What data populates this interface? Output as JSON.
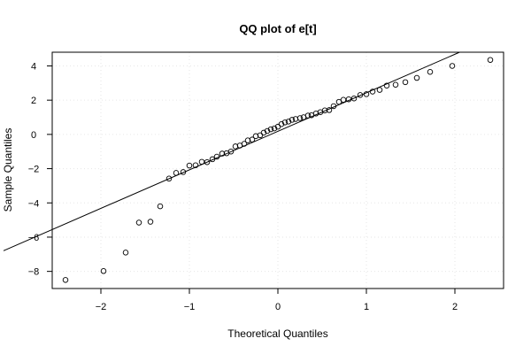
{
  "chart_data": {
    "type": "scatter",
    "title": "QQ plot of e[t]",
    "xlabel": "Theoretical Quantiles",
    "ylabel": "Sample Quantiles",
    "xlim": [
      -2.55,
      2.55
    ],
    "ylim": [
      -9.0,
      4.8
    ],
    "x_ticks": [
      -2,
      -1,
      0,
      1,
      2
    ],
    "x_tick_labels": [
      "−2",
      "−1",
      "0",
      "1",
      "2"
    ],
    "y_ticks": [
      -8,
      -6,
      -4,
      -2,
      0,
      2,
      4
    ],
    "y_tick_labels": [
      "−8",
      "−6",
      "−4",
      "−2",
      "0",
      "2",
      "4"
    ],
    "grid": true,
    "reference_line": {
      "intercept": 0.18,
      "slope": 2.25
    },
    "points": [
      {
        "x": -2.4,
        "y": -8.5
      },
      {
        "x": -1.97,
        "y": -7.98
      },
      {
        "x": -1.72,
        "y": -6.9
      },
      {
        "x": -1.57,
        "y": -5.15
      },
      {
        "x": -1.44,
        "y": -5.1
      },
      {
        "x": -1.33,
        "y": -4.2
      },
      {
        "x": -1.23,
        "y": -2.58
      },
      {
        "x": -1.15,
        "y": -2.25
      },
      {
        "x": -1.07,
        "y": -2.2
      },
      {
        "x": -1.0,
        "y": -1.82
      },
      {
        "x": -0.93,
        "y": -1.8
      },
      {
        "x": -0.86,
        "y": -1.6
      },
      {
        "x": -0.8,
        "y": -1.62
      },
      {
        "x": -0.74,
        "y": -1.45
      },
      {
        "x": -0.69,
        "y": -1.3
      },
      {
        "x": -0.63,
        "y": -1.12
      },
      {
        "x": -0.58,
        "y": -1.1
      },
      {
        "x": -0.53,
        "y": -1.0
      },
      {
        "x": -0.48,
        "y": -0.7
      },
      {
        "x": -0.43,
        "y": -0.65
      },
      {
        "x": -0.38,
        "y": -0.55
      },
      {
        "x": -0.34,
        "y": -0.35
      },
      {
        "x": -0.29,
        "y": -0.3
      },
      {
        "x": -0.25,
        "y": -0.1
      },
      {
        "x": -0.2,
        "y": -0.05
      },
      {
        "x": -0.16,
        "y": 0.1
      },
      {
        "x": -0.12,
        "y": 0.2
      },
      {
        "x": -0.08,
        "y": 0.3
      },
      {
        "x": -0.04,
        "y": 0.35
      },
      {
        "x": 0.0,
        "y": 0.45
      },
      {
        "x": 0.04,
        "y": 0.6
      },
      {
        "x": 0.08,
        "y": 0.7
      },
      {
        "x": 0.12,
        "y": 0.75
      },
      {
        "x": 0.16,
        "y": 0.85
      },
      {
        "x": 0.2,
        "y": 0.9
      },
      {
        "x": 0.25,
        "y": 0.95
      },
      {
        "x": 0.29,
        "y": 1.0
      },
      {
        "x": 0.34,
        "y": 1.1
      },
      {
        "x": 0.38,
        "y": 1.12
      },
      {
        "x": 0.43,
        "y": 1.22
      },
      {
        "x": 0.48,
        "y": 1.3
      },
      {
        "x": 0.53,
        "y": 1.4
      },
      {
        "x": 0.58,
        "y": 1.42
      },
      {
        "x": 0.63,
        "y": 1.65
      },
      {
        "x": 0.69,
        "y": 1.9
      },
      {
        "x": 0.74,
        "y": 2.02
      },
      {
        "x": 0.8,
        "y": 2.05
      },
      {
        "x": 0.86,
        "y": 2.1
      },
      {
        "x": 0.93,
        "y": 2.3
      },
      {
        "x": 1.0,
        "y": 2.35
      },
      {
        "x": 1.07,
        "y": 2.5
      },
      {
        "x": 1.15,
        "y": 2.6
      },
      {
        "x": 1.23,
        "y": 2.85
      },
      {
        "x": 1.33,
        "y": 2.9
      },
      {
        "x": 1.44,
        "y": 3.05
      },
      {
        "x": 1.57,
        "y": 3.3
      },
      {
        "x": 1.72,
        "y": 3.65
      },
      {
        "x": 1.97,
        "y": 4.0
      },
      {
        "x": 2.4,
        "y": 4.35
      }
    ]
  }
}
